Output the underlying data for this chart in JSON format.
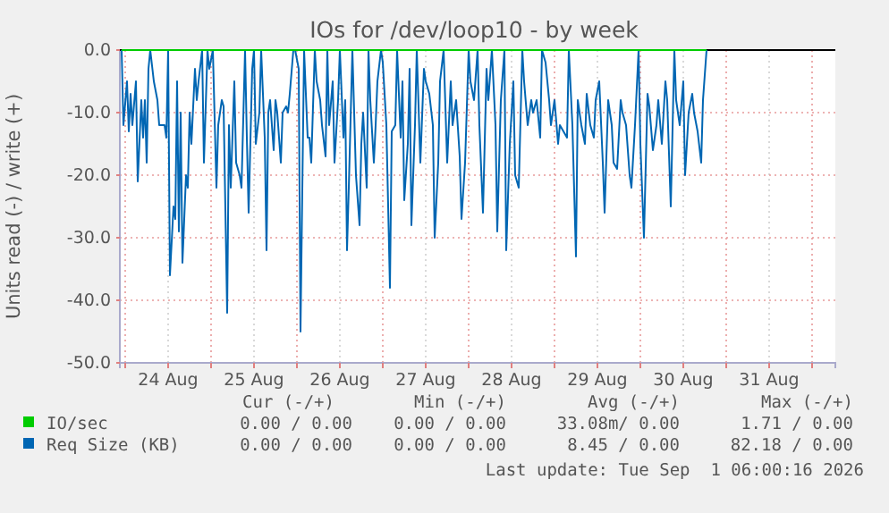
{
  "chart_data": {
    "type": "line",
    "title": "IOs for /dev/loop10 - by week",
    "ylabel": "Units read (-) / write (+)",
    "xlim": [
      "2026-08-23T22:30",
      "2026-09-01T06:30"
    ],
    "ylim": [
      -50,
      0
    ],
    "xticks": [
      {
        "value": "2026-08-24T00:00",
        "label": null
      },
      {
        "value": "2026-08-24T12:00",
        "label": "24 Aug"
      },
      {
        "value": "2026-08-25T00:00",
        "label": null
      },
      {
        "value": "2026-08-25T12:00",
        "label": "25 Aug"
      },
      {
        "value": "2026-08-26T00:00",
        "label": null
      },
      {
        "value": "2026-08-26T12:00",
        "label": "26 Aug"
      },
      {
        "value": "2026-08-27T00:00",
        "label": null
      },
      {
        "value": "2026-08-27T12:00",
        "label": "27 Aug"
      },
      {
        "value": "2026-08-28T00:00",
        "label": null
      },
      {
        "value": "2026-08-28T12:00",
        "label": "28 Aug"
      },
      {
        "value": "2026-08-29T00:00",
        "label": null
      },
      {
        "value": "2026-08-29T12:00",
        "label": "29 Aug"
      },
      {
        "value": "2026-08-30T00:00",
        "label": null
      },
      {
        "value": "2026-08-30T12:00",
        "label": "30 Aug"
      },
      {
        "value": "2026-08-31T00:00",
        "label": null
      },
      {
        "value": "2026-08-31T12:00",
        "label": "31 Aug"
      },
      {
        "value": "2026-09-01T00:00",
        "label": null
      }
    ],
    "yticks": [
      {
        "value": 0,
        "label": "0.0"
      },
      {
        "value": -10,
        "label": "-10.0"
      },
      {
        "value": -20,
        "label": "-20.0"
      },
      {
        "value": -30,
        "label": "-30.0"
      },
      {
        "value": -40,
        "label": "-40.0"
      },
      {
        "value": -50,
        "label": "-50.0"
      }
    ],
    "grid": true,
    "legend": "bottom left",
    "series": [
      {
        "name": "IO/sec",
        "color": "#00cc00",
        "x": [
          "2026-08-23T23:00",
          "2026-08-30T18:30"
        ],
        "values": [
          0,
          0
        ]
      },
      {
        "name": "Req Size (KB)",
        "color": "#0066b3",
        "x": [
          "2026-08-23T23:00",
          "2026-08-23T23:30",
          "2026-08-24T00:30",
          "2026-08-24T01:00",
          "2026-08-24T01:30",
          "2026-08-24T02:00",
          "2026-08-24T03:00",
          "2026-08-24T03:30",
          "2026-08-24T04:30",
          "2026-08-24T05:00",
          "2026-08-24T05:30",
          "2026-08-24T06:00",
          "2026-08-24T06:30",
          "2026-08-24T07:00",
          "2026-08-24T08:00",
          "2026-08-24T09:00",
          "2026-08-24T09:30",
          "2026-08-24T11:00",
          "2026-08-24T11:30",
          "2026-08-24T12:00",
          "2026-08-24T12:30",
          "2026-08-24T13:30",
          "2026-08-24T14:00",
          "2026-08-24T14:30",
          "2026-08-24T15:00",
          "2026-08-24T15:30",
          "2026-08-24T16:00",
          "2026-08-24T17:00",
          "2026-08-24T17:30",
          "2026-08-24T18:00",
          "2026-08-24T18:30",
          "2026-08-24T19:30",
          "2026-08-24T20:00",
          "2026-08-24T20:30",
          "2026-08-24T21:30",
          "2026-08-24T22:00",
          "2026-08-24T23:00",
          "2026-08-24T23:30",
          "2026-08-25T00:30",
          "2026-08-25T01:30",
          "2026-08-25T02:00",
          "2026-08-25T03:00",
          "2026-08-25T03:30",
          "2026-08-25T04:30",
          "2026-08-25T05:00",
          "2026-08-25T05:30",
          "2026-08-25T06:30",
          "2026-08-25T07:00",
          "2026-08-25T08:00",
          "2026-08-25T08:30",
          "2026-08-25T09:30",
          "2026-08-25T10:00",
          "2026-08-25T10:30",
          "2026-08-25T11:30",
          "2026-08-25T12:00",
          "2026-08-25T12:30",
          "2026-08-25T13:30",
          "2026-08-25T14:00",
          "2026-08-25T15:00",
          "2026-08-25T15:30",
          "2026-08-25T16:00",
          "2026-08-25T16:30",
          "2026-08-25T17:30",
          "2026-08-25T18:00",
          "2026-08-25T18:30",
          "2026-08-25T19:30",
          "2026-08-25T20:00",
          "2026-08-25T21:00",
          "2026-08-25T21:30",
          "2026-08-25T22:00",
          "2026-08-25T23:00",
          "2026-08-25T23:30",
          "2026-08-26T00:30",
          "2026-08-26T01:00",
          "2026-08-26T02:00",
          "2026-08-26T03:00",
          "2026-08-26T03:30",
          "2026-08-26T04:00",
          "2026-08-26T05:00",
          "2026-08-26T05:30",
          "2026-08-26T06:30",
          "2026-08-26T07:00",
          "2026-08-26T08:00",
          "2026-08-26T08:30",
          "2026-08-26T09:00",
          "2026-08-26T10:00",
          "2026-08-26T10:30",
          "2026-08-26T11:30",
          "2026-08-26T12:00",
          "2026-08-26T13:00",
          "2026-08-26T13:30",
          "2026-08-26T14:00",
          "2026-08-26T14:30",
          "2026-08-26T15:30",
          "2026-08-26T16:00",
          "2026-08-26T16:30",
          "2026-08-26T17:30",
          "2026-08-26T18:00",
          "2026-08-26T18:30",
          "2026-08-26T19:30",
          "2026-08-26T20:00",
          "2026-08-26T20:30",
          "2026-08-26T21:30",
          "2026-08-26T22:00",
          "2026-08-26T22:30",
          "2026-08-26T23:30",
          "2026-08-27T00:00",
          "2026-08-27T01:00",
          "2026-08-27T02:00",
          "2026-08-27T02:30",
          "2026-08-27T03:30",
          "2026-08-27T04:00",
          "2026-08-27T05:00",
          "2026-08-27T05:30",
          "2026-08-27T06:00",
          "2026-08-27T07:00",
          "2026-08-27T07:30",
          "2026-08-27T08:00",
          "2026-08-27T09:00",
          "2026-08-27T09:30",
          "2026-08-27T10:30",
          "2026-08-27T11:30",
          "2026-08-27T12:00",
          "2026-08-27T13:00",
          "2026-08-27T14:00",
          "2026-08-27T14:30",
          "2026-08-27T15:30",
          "2026-08-27T16:00",
          "2026-08-27T17:00",
          "2026-08-27T18:00",
          "2026-08-27T19:00",
          "2026-08-27T19:30",
          "2026-08-27T20:30",
          "2026-08-27T21:30",
          "2026-08-27T22:00",
          "2026-08-27T23:00",
          "2026-08-28T00:00",
          "2026-08-28T00:30",
          "2026-08-28T01:30",
          "2026-08-28T02:30",
          "2026-08-28T03:00",
          "2026-08-28T04:00",
          "2026-08-28T05:00",
          "2026-08-28T05:30",
          "2026-08-28T06:30",
          "2026-08-28T07:30",
          "2026-08-28T08:00",
          "2026-08-28T09:00",
          "2026-08-28T10:00",
          "2026-08-28T10:30",
          "2026-08-28T11:30",
          "2026-08-28T12:30",
          "2026-08-28T13:00",
          "2026-08-28T14:00",
          "2026-08-28T15:00",
          "2026-08-28T15:30",
          "2026-08-28T16:30",
          "2026-08-28T17:30",
          "2026-08-28T18:00",
          "2026-08-28T19:00",
          "2026-08-28T20:00",
          "2026-08-28T20:30",
          "2026-08-28T21:30",
          "2026-08-28T22:30",
          "2026-08-28T23:00",
          "2026-08-29T00:00",
          "2026-08-29T01:00",
          "2026-08-29T01:30",
          "2026-08-29T02:30",
          "2026-08-29T03:30",
          "2026-08-29T04:00",
          "2026-08-29T05:00",
          "2026-08-29T06:00",
          "2026-08-29T06:30",
          "2026-08-29T07:30",
          "2026-08-29T08:30",
          "2026-08-29T09:00",
          "2026-08-29T10:00",
          "2026-08-29T11:00",
          "2026-08-29T11:30",
          "2026-08-29T12:30",
          "2026-08-29T13:30",
          "2026-08-29T14:00",
          "2026-08-29T15:00",
          "2026-08-29T16:00",
          "2026-08-29T16:30",
          "2026-08-29T17:30",
          "2026-08-29T18:30",
          "2026-08-29T19:00",
          "2026-08-29T20:00",
          "2026-08-29T21:00",
          "2026-08-29T21:30",
          "2026-08-29T22:30",
          "2026-08-29T23:30",
          "2026-08-30T00:00",
          "2026-08-30T01:00",
          "2026-08-30T02:00",
          "2026-08-30T02:30",
          "2026-08-30T03:30",
          "2026-08-30T04:30",
          "2026-08-30T05:00",
          "2026-08-30T06:00",
          "2026-08-30T07:00",
          "2026-08-30T07:30",
          "2026-08-30T08:30",
          "2026-08-30T09:30",
          "2026-08-30T10:00",
          "2026-08-30T11:00",
          "2026-08-30T12:00",
          "2026-08-30T12:30",
          "2026-08-30T13:30",
          "2026-08-30T14:30",
          "2026-08-30T15:00",
          "2026-08-30T16:00",
          "2026-08-30T17:00",
          "2026-08-30T17:30",
          "2026-08-30T18:30"
        ],
        "values": [
          0,
          -12,
          -5,
          -13,
          -7,
          -12,
          -5,
          -21,
          -8,
          -14,
          -8,
          -18,
          -3,
          0,
          -5,
          -8,
          -12,
          -12,
          -14,
          0,
          -36,
          -25,
          -27,
          -5,
          -29,
          -10,
          -34,
          -20,
          -22,
          -10,
          -15,
          -3,
          -8,
          -5,
          0,
          -18,
          0,
          -3,
          0,
          -22,
          -12,
          -8,
          -9,
          -42,
          -12,
          -22,
          -5,
          -18,
          -20,
          -22,
          0,
          -14,
          -26,
          -3,
          0,
          -15,
          -10,
          0,
          -14,
          -32,
          -10,
          -8,
          -16,
          -8,
          -10,
          -18,
          -10,
          -9,
          -10,
          -7,
          0,
          0,
          -3,
          -45,
          0,
          -14,
          -14,
          -18,
          0,
          -5,
          -8,
          -12,
          -17,
          0,
          -12,
          -5,
          -18,
          -8,
          0,
          -14,
          -8,
          -32,
          -22,
          0,
          -10,
          -20,
          -28,
          -15,
          -10,
          -22,
          0,
          -8,
          -18,
          -12,
          -5,
          0,
          -2,
          -12,
          -38,
          -13,
          -12,
          0,
          -14,
          -5,
          -24,
          -15,
          -3,
          -28,
          -12,
          0,
          -18,
          -3,
          -5,
          -7,
          -12,
          -30,
          -18,
          -5,
          0,
          -18,
          -5,
          -12,
          -8,
          -17,
          -27,
          -18,
          0,
          -5,
          -8,
          0,
          -12,
          -26,
          -3,
          -8,
          0,
          -12,
          -29,
          -8,
          0,
          -32,
          -15,
          -5,
          -20,
          -22,
          0,
          -5,
          -12,
          -8,
          -10,
          -8,
          -14,
          0,
          -2,
          -8,
          -12,
          -8,
          -15,
          -12,
          -13,
          -14,
          0,
          -12,
          -33,
          -8,
          -12,
          -15,
          -7,
          -12,
          -14,
          -8,
          -5,
          -18,
          -26,
          -8,
          -12,
          -18,
          -19,
          -8,
          -10,
          -12,
          -20,
          -22,
          -12,
          0,
          -15,
          -30,
          -7,
          -9,
          -16,
          -12,
          -8,
          -15,
          -5,
          -8,
          -25,
          0,
          -8,
          -12,
          -5,
          -20,
          -10,
          -7,
          -10,
          -13,
          -18,
          -8,
          0
        ]
      }
    ],
    "annotations": [
      "Cur (-/+)",
      "Min (-/+)",
      "Avg (-/+)",
      "Max (-/+)",
      "0.00 / 0.00",
      "0.00 / 0.00",
      "33.08m/ 0.00",
      "1.71 / 0.00",
      "0.00 / 0.00",
      "0.00 / 0.00",
      "8.45 / 0.00",
      "82.18 / 0.00",
      "Last update: Tue Sep  1 06:00:16 2026"
    ]
  }
}
